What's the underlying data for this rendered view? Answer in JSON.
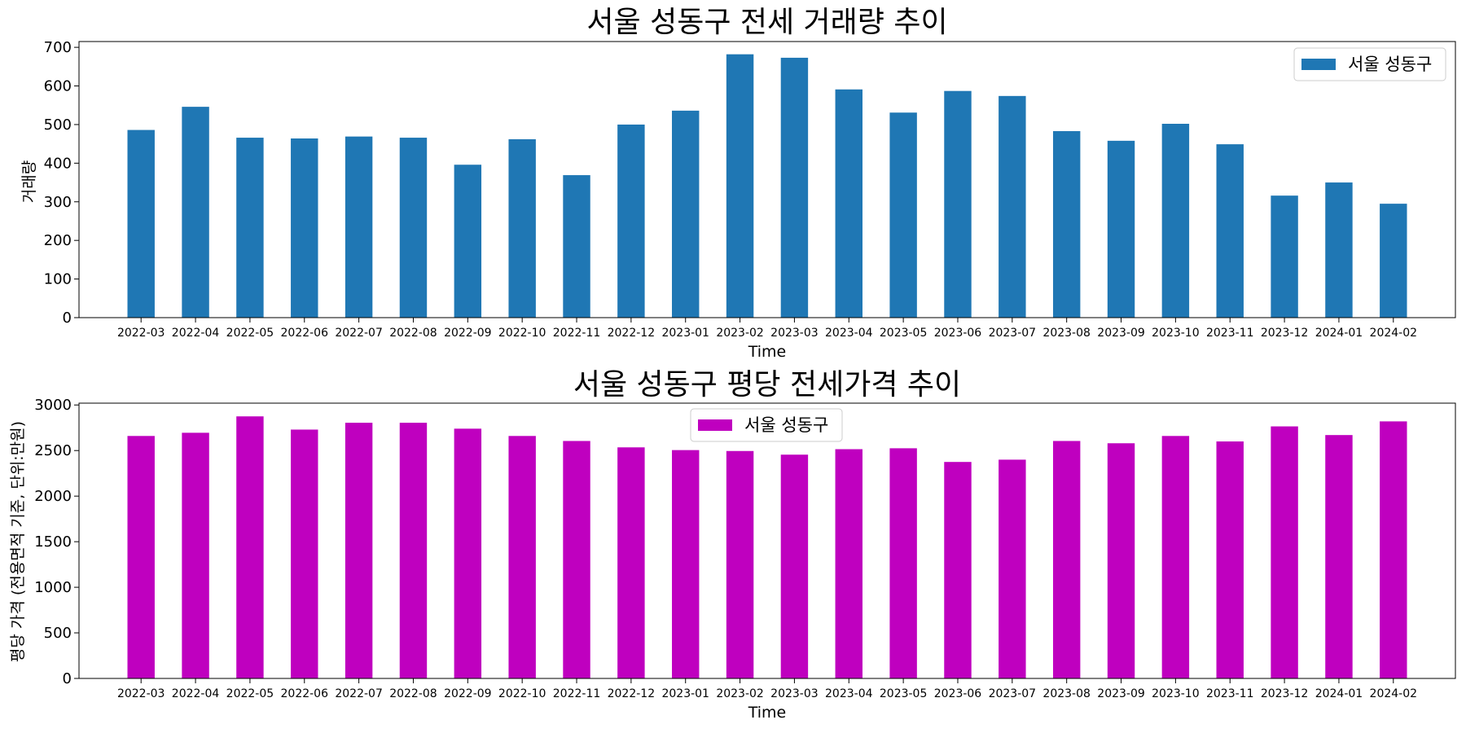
{
  "chart_data": [
    {
      "type": "bar",
      "title": "서울 성동구 전세 거래량 추이",
      "xlabel": "Time",
      "ylabel": "거래량",
      "ylim": [
        0,
        715
      ],
      "yticks": [
        "0",
        "100",
        "200",
        "300",
        "400",
        "500",
        "600",
        "700"
      ],
      "legend_position": "upper right",
      "grid": false,
      "categories": [
        "2022-03",
        "2022-04",
        "2022-05",
        "2022-06",
        "2022-07",
        "2022-08",
        "2022-09",
        "2022-10",
        "2022-11",
        "2022-12",
        "2023-01",
        "2023-02",
        "2023-03",
        "2023-04",
        "2023-05",
        "2023-06",
        "2023-07",
        "2023-08",
        "2023-09",
        "2023-10",
        "2023-11",
        "2023-12",
        "2024-01",
        "2024-02"
      ],
      "series": [
        {
          "name": "서울 성동구",
          "color": "#1f77b4",
          "values": [
            486,
            546,
            466,
            464,
            469,
            466,
            396,
            462,
            369,
            500,
            536,
            682,
            673,
            591,
            531,
            587,
            574,
            483,
            458,
            502,
            449,
            316,
            350,
            295
          ]
        }
      ]
    },
    {
      "type": "bar",
      "title": "서울 성동구 평당 전세가격 추이",
      "xlabel": "Time",
      "ylabel": "평당 가격 (전용면적 기준, 단위:만원)",
      "ylim": [
        0,
        3020
      ],
      "yticks": [
        "0",
        "500",
        "1000",
        "1500",
        "2000",
        "2500",
        "3000"
      ],
      "legend_position": "upper center",
      "grid": false,
      "categories": [
        "2022-03",
        "2022-04",
        "2022-05",
        "2022-06",
        "2022-07",
        "2022-08",
        "2022-09",
        "2022-10",
        "2022-11",
        "2022-12",
        "2023-01",
        "2023-02",
        "2023-03",
        "2023-04",
        "2023-05",
        "2023-06",
        "2023-07",
        "2023-08",
        "2023-09",
        "2023-10",
        "2023-11",
        "2023-12",
        "2024-01",
        "2024-02"
      ],
      "series": [
        {
          "name": "서울 성동구",
          "color": "#bf00bf",
          "values": [
            2660,
            2695,
            2875,
            2730,
            2805,
            2805,
            2740,
            2660,
            2605,
            2535,
            2505,
            2495,
            2455,
            2515,
            2525,
            2375,
            2400,
            2605,
            2580,
            2660,
            2600,
            2765,
            2670,
            2820
          ]
        }
      ]
    }
  ]
}
